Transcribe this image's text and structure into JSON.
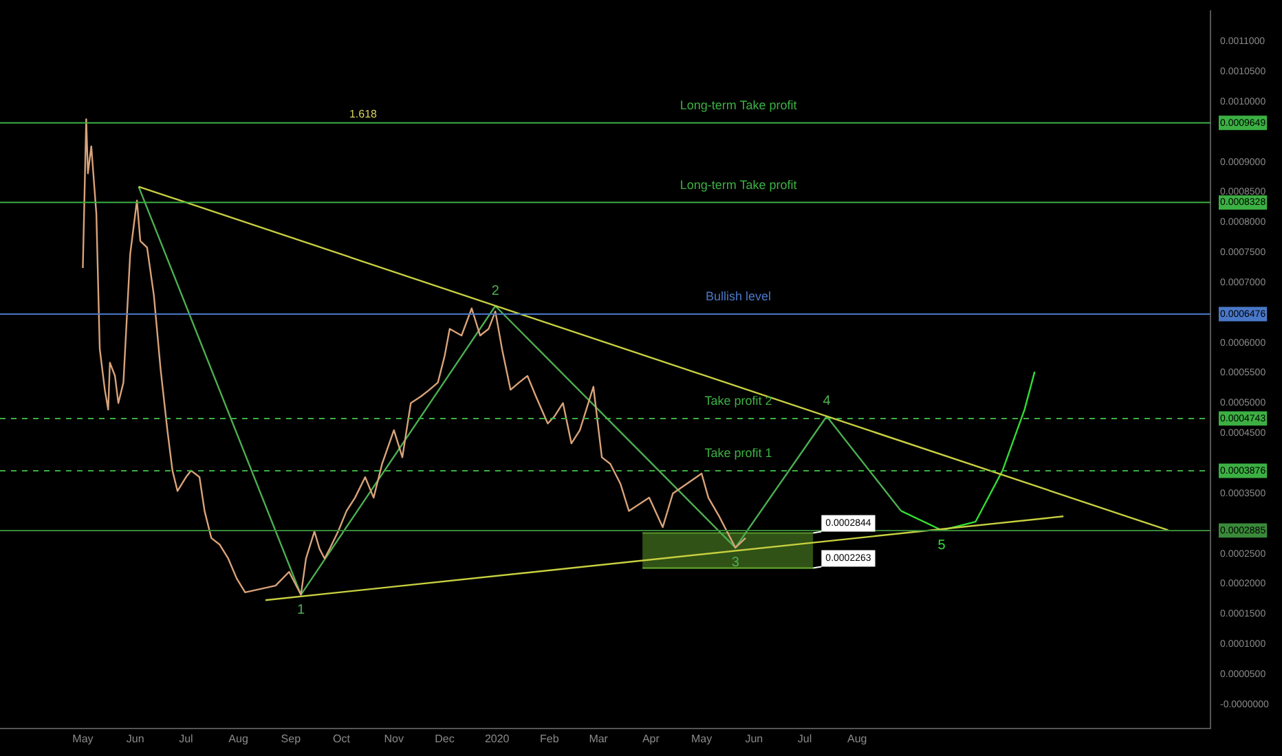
{
  "chart_data": {
    "type": "line",
    "xlim": [
      "2019-03-13",
      "2021-02-26"
    ],
    "xticks": [
      {
        "value": "2019-05-01",
        "label": "May"
      },
      {
        "value": "2019-06-01",
        "label": "Jun"
      },
      {
        "value": "2019-07-01",
        "label": "Jul"
      },
      {
        "value": "2019-08-01",
        "label": "Aug"
      },
      {
        "value": "2019-09-01",
        "label": "Sep"
      },
      {
        "value": "2019-10-01",
        "label": "Oct"
      },
      {
        "value": "2019-11-01",
        "label": "Nov"
      },
      {
        "value": "2019-12-01",
        "label": "Dec"
      },
      {
        "value": "2020-01-01",
        "label": "2020"
      },
      {
        "value": "2020-02-01",
        "label": "Feb"
      },
      {
        "value": "2020-03-01",
        "label": "Mar"
      },
      {
        "value": "2020-04-01",
        "label": "Apr"
      },
      {
        "value": "2020-05-01",
        "label": "May"
      },
      {
        "value": "2020-06-01",
        "label": "Jun"
      },
      {
        "value": "2020-07-01",
        "label": "Jul"
      },
      {
        "value": "2020-08-01",
        "label": "Aug"
      }
    ],
    "ylim": [
      -4e-05,
      0.00115
    ],
    "yticks": [
      {
        "value": 0,
        "label": "-0.0000000"
      },
      {
        "value": 5e-05,
        "label": "0.0000500"
      },
      {
        "value": 0.0001,
        "label": "0.0001000"
      },
      {
        "value": 0.00015,
        "label": "0.0001500"
      },
      {
        "value": 0.0002,
        "label": "0.0002000"
      },
      {
        "value": 0.00025,
        "label": "0.0002500"
      },
      {
        "value": 0.00035,
        "label": "0.0003500"
      },
      {
        "value": 0.00045,
        "label": "0.0004500"
      },
      {
        "value": 0.0005,
        "label": "0.0005000"
      },
      {
        "value": 0.00055,
        "label": "0.0005500"
      },
      {
        "value": 0.0006,
        "label": "0.0006000"
      },
      {
        "value": 0.00065,
        "label": null
      },
      {
        "value": 0.0007,
        "label": "0.0007000"
      },
      {
        "value": 0.00075,
        "label": "0.0007500"
      },
      {
        "value": 0.0008,
        "label": "0.0008000"
      },
      {
        "value": 0.00085,
        "label": "0.0008500"
      },
      {
        "value": 0.0009,
        "label": "0.0009000"
      },
      {
        "value": 0.001,
        "label": "0.0010000"
      },
      {
        "value": 0.00105,
        "label": "0.0010500"
      },
      {
        "value": 0.0011,
        "label": "0.0011000"
      },
      {
        "value": 0.0002885,
        "label": "0.0002885"
      },
      {
        "value": 0.0003876,
        "label": "0.0003876"
      },
      {
        "value": 0.0004743,
        "label": "0.0004743"
      },
      {
        "value": 0.0006476,
        "label": "0.0006476"
      },
      {
        "value": 0.0008328,
        "label": "0.0008328"
      },
      {
        "value": 0.0009649,
        "label": "0.0009649"
      }
    ],
    "grid": false,
    "legend": false,
    "series": [
      {
        "color": "#d9a37a",
        "x": [
          "2019-05-01",
          "2019-05-03",
          "2019-05-04",
          "2019-05-06",
          "2019-05-09",
          "2019-05-11",
          "2019-05-14",
          "2019-05-16",
          "2019-05-17",
          "2019-05-20",
          "2019-05-22",
          "2019-05-25",
          "2019-05-29",
          "2019-06-02",
          "2019-06-04",
          "2019-06-08",
          "2019-06-12",
          "2019-06-16",
          "2019-06-20",
          "2019-06-23",
          "2019-06-26",
          "2019-07-01",
          "2019-07-04",
          "2019-07-09",
          "2019-07-12",
          "2019-07-16",
          "2019-07-21",
          "2019-07-26",
          "2019-07-31",
          "2019-08-05",
          "2019-08-23",
          "2019-08-31",
          "2019-09-07",
          "2019-09-10",
          "2019-09-15",
          "2019-09-18",
          "2019-09-21",
          "2019-09-24",
          "2019-09-29",
          "2019-10-04",
          "2019-10-09",
          "2019-10-15",
          "2019-10-20",
          "2019-10-25",
          "2019-11-01",
          "2019-11-06",
          "2019-11-11",
          "2019-11-17",
          "2019-11-22",
          "2019-11-27",
          "2019-12-01",
          "2019-12-04",
          "2019-12-11",
          "2019-12-17",
          "2019-12-22",
          "2019-12-27",
          "2019-12-31",
          "2020-01-04",
          "2020-01-09",
          "2020-01-14",
          "2020-01-19",
          "2020-01-24",
          "2020-01-31",
          "2020-02-04",
          "2020-02-09",
          "2020-02-14",
          "2020-02-19",
          "2020-02-27",
          "2020-03-03",
          "2020-03-08",
          "2020-03-14",
          "2020-03-19",
          "2020-03-31",
          "2020-04-08",
          "2020-04-14",
          "2020-05-01",
          "2020-05-05",
          "2020-05-11",
          "2020-05-21",
          "2020-05-27"
        ],
        "values": [
          0.000724,
          0.000971,
          0.000881,
          0.000926,
          0.000814,
          0.00059,
          0.000522,
          0.000489,
          0.000567,
          0.000545,
          0.0005,
          0.000534,
          0.000747,
          0.000836,
          0.000769,
          0.000758,
          0.000679,
          0.000556,
          0.000455,
          0.000388,
          0.000354,
          0.000377,
          0.000388,
          0.000377,
          0.000321,
          0.000276,
          0.000265,
          0.000242,
          0.000209,
          0.000186,
          0.000197,
          0.00022,
          0.000182,
          0.000242,
          0.000287,
          0.000258,
          0.000242,
          0.000258,
          0.000287,
          0.000321,
          0.000343,
          0.000377,
          0.000343,
          0.000399,
          0.000455,
          0.00041,
          0.0005,
          0.000511,
          0.000522,
          0.000534,
          0.000578,
          0.000623,
          0.000612,
          0.000657,
          0.000612,
          0.000623,
          0.000652,
          0.000589,
          0.000522,
          0.000534,
          0.000545,
          0.000511,
          0.000466,
          0.000478,
          0.0005,
          0.000433,
          0.000455,
          0.000527,
          0.00041,
          0.000399,
          0.000366,
          0.000321,
          0.000343,
          0.000294,
          0.00035,
          0.000383,
          0.000343,
          0.000314,
          0.00026,
          0.000276
        ]
      },
      {
        "type": "line",
        "color": "#c8d040",
        "x": [
          "2019-06-03",
          "2021-02-01"
        ],
        "values": [
          0.000859,
          0.000289
        ]
      },
      {
        "type": "line",
        "color": "#c8d040",
        "x": [
          "2019-08-17",
          "2020-12-01"
        ],
        "values": [
          0.000173,
          0.000312
        ]
      },
      {
        "type": "line",
        "color": "#4caf50",
        "x": [
          "2019-06-03",
          "2019-09-07",
          "2019-12-31",
          "2020-05-21",
          "2020-07-14",
          "2020-08-27"
        ],
        "values": [
          0.000859,
          0.000182,
          0.000661,
          0.00026,
          0.000478,
          0.000321
        ]
      },
      {
        "type": "line",
        "color": "#33dd33",
        "x": [
          "2020-08-27",
          "2020-09-20",
          "2020-10-10",
          "2020-10-26",
          "2020-11-08",
          "2020-11-14"
        ],
        "values": [
          0.000321,
          0.000289,
          0.000303,
          0.000388,
          0.000489,
          0.000552
        ]
      },
      {
        "type": "line",
        "color": "#5a9a2a",
        "x": [
          "2020-03-27",
          "2020-07-06"
        ],
        "values": [
          0.0002263,
          0.0002263
        ]
      },
      {
        "type": "area",
        "color": "#5a9a2a",
        "x": [
          "2020-03-27",
          "2020-07-06"
        ],
        "values": [
          0.0002844,
          0.0002844
        ]
      }
    ],
    "ref_lines": [
      {
        "axis": "y",
        "value": 0.0009649,
        "label": "Long-term Take profit",
        "color": "#3cb043",
        "line_style": "solid"
      },
      {
        "axis": "y",
        "value": 0.0008328,
        "label": "Long-term Take profit",
        "color": "#3cb043",
        "line_style": "solid"
      },
      {
        "axis": "y",
        "value": 0.0006476,
        "label": "Bullish level",
        "color": "#4a78c8",
        "line_style": "solid"
      },
      {
        "axis": "y",
        "value": 0.0004743,
        "label": "Take profit 2",
        "color": "#3cb043",
        "line_style": "dashed"
      },
      {
        "axis": "y",
        "value": 0.0003876,
        "label": "Take profit 1",
        "color": "#3cb043",
        "line_style": "dashed"
      },
      {
        "axis": "y",
        "value": 0.0002885,
        "label": null,
        "color": "#3a8a3a",
        "line_style": "solid"
      }
    ],
    "annotations": [
      "1.618",
      {
        "text": "1",
        "x": "2019-09-07",
        "y": 0.000182
      },
      {
        "text": "2",
        "x": "2019-12-31",
        "y": 0.000661
      },
      {
        "text": "3",
        "x": "2020-05-21",
        "y": 0.00026
      },
      {
        "text": "4",
        "x": "2020-07-14",
        "y": 0.000478
      },
      {
        "text": "5",
        "x": "2020-09-20",
        "y": 0.000289
      },
      {
        "text": "0.0002844",
        "x": "2020-07-06",
        "y": 0.0002844
      },
      {
        "text": "0.0002263",
        "x": "2020-07-06",
        "y": 0.0002263
      }
    ]
  }
}
